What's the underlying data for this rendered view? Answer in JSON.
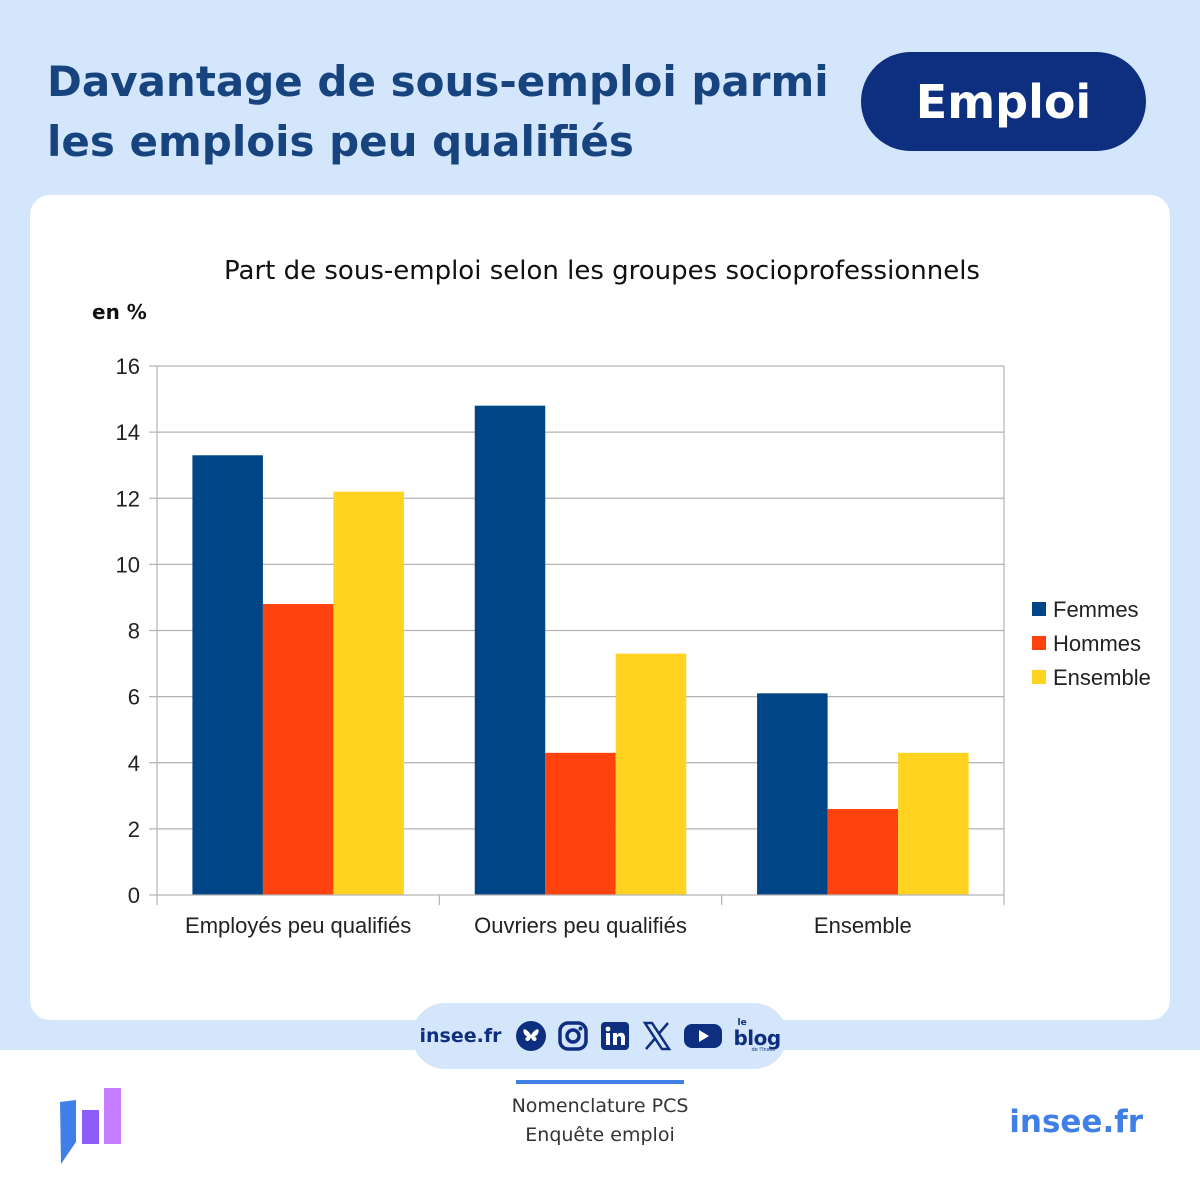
{
  "header": {
    "title": "Davantage de sous-emploi parmi les emplois peu qualifiés",
    "badge": "Emploi"
  },
  "colors": {
    "header_bg": "#d4e6fb",
    "title": "#17447f",
    "badge_bg": "#0e2f7f",
    "femmes": "#004586",
    "hommes": "#ff420e",
    "ensemble": "#ffd320",
    "accent": "#3f7fe6"
  },
  "chart_data": {
    "type": "bar",
    "title": "Part de sous-emploi selon les groupes socioprofessionnels",
    "unit_label": "en %",
    "xlabel": "",
    "ylabel": "en %",
    "categories": [
      "Employés peu qualifiés",
      "Ouvriers peu qualifiés",
      "Ensemble"
    ],
    "series": [
      {
        "name": "Femmes",
        "color": "#004586",
        "values": [
          13.3,
          14.8,
          6.1
        ]
      },
      {
        "name": "Hommes",
        "color": "#ff420e",
        "values": [
          8.8,
          4.3,
          2.6
        ]
      },
      {
        "name": "Ensemble",
        "color": "#ffd320",
        "values": [
          12.2,
          7.3,
          4.3
        ]
      }
    ],
    "ylim": [
      0,
      16
    ],
    "yticks": [
      0,
      2,
      4,
      6,
      8,
      10,
      12,
      14,
      16
    ],
    "grid": true,
    "legend": "right"
  },
  "social": {
    "site": "insee.fr",
    "icons": [
      "bluesky-icon",
      "instagram-icon",
      "linkedin-icon",
      "x-icon",
      "youtube-icon",
      "blog-icon"
    ],
    "blog": {
      "prefix": "le",
      "word": "blog",
      "suffix": "de l'Insee"
    }
  },
  "footer": {
    "source_line1": "Nomenclature PCS",
    "source_line2": "Enquête emploi",
    "link": "insee.fr"
  }
}
